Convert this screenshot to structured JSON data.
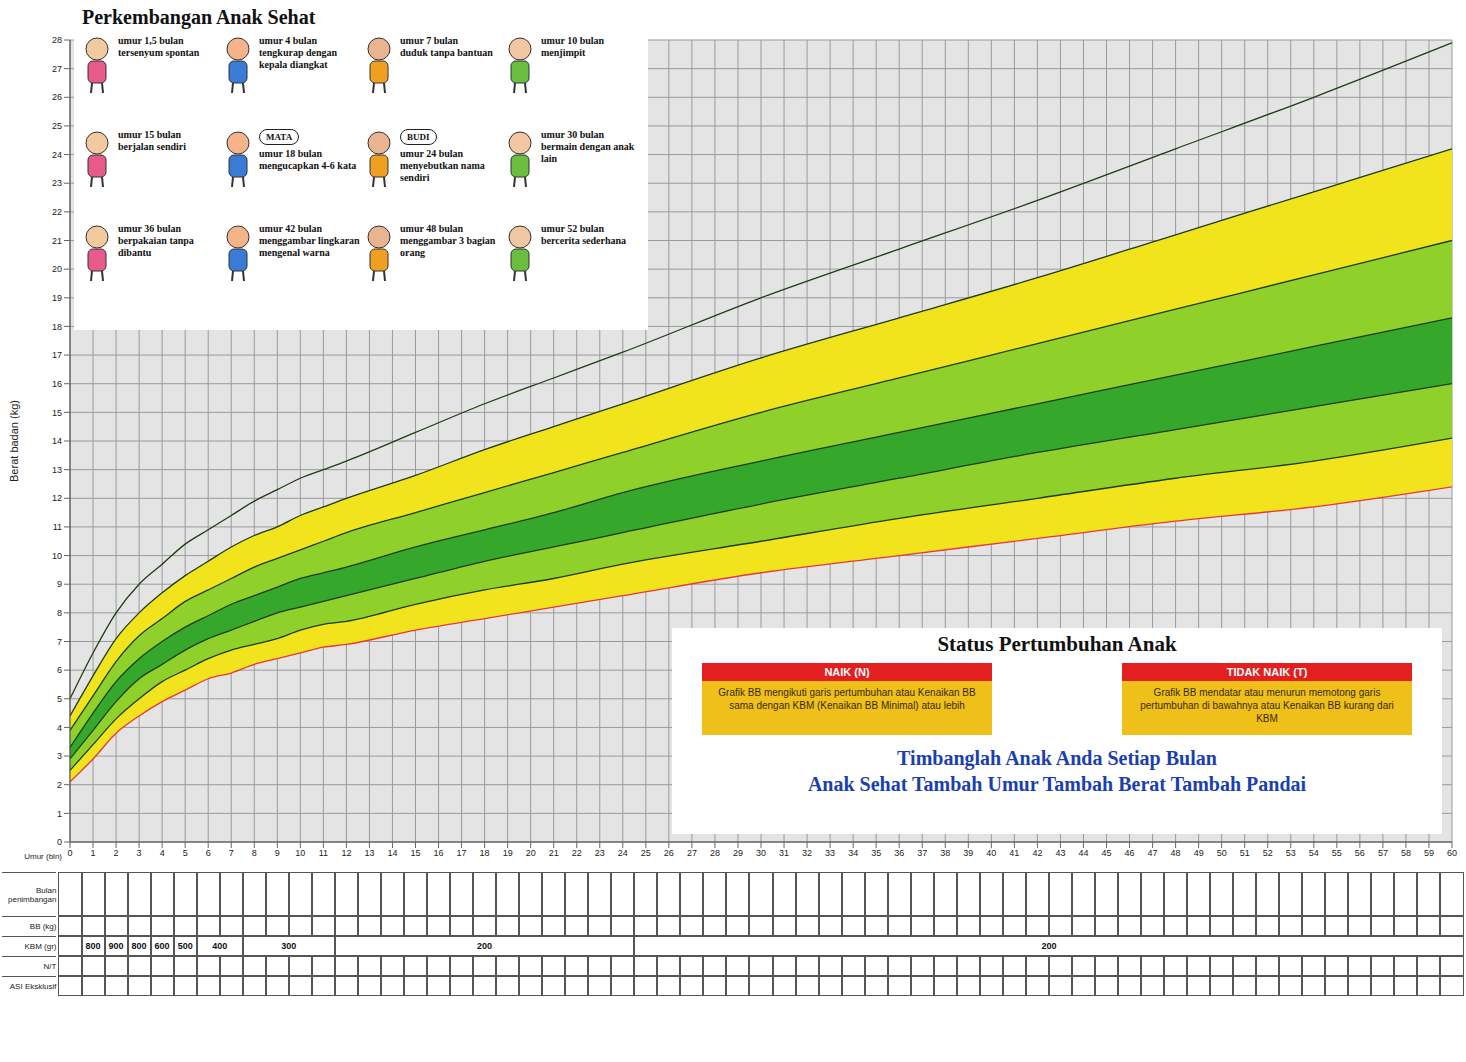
{
  "title": "Perkembangan Anak Sehat",
  "milestones": [
    {
      "age": "umur 1,5 bulan",
      "skill": "tersenyum spontan"
    },
    {
      "age": "umur 4 bulan",
      "skill": "tengkurap dengan kepala diangkat"
    },
    {
      "age": "umur 7 bulan",
      "skill": "duduk tanpa bantuan"
    },
    {
      "age": "umur 10 bulan",
      "skill": "menjimpit"
    },
    {
      "age": "umur 15 bulan",
      "skill": "berjalan sendiri"
    },
    {
      "age": "umur 18 bulan",
      "skill": "mengucapkan 4-6 kata",
      "bubble": "MATA"
    },
    {
      "age": "umur 24 bulan",
      "skill": "menyebutkan nama sendiri",
      "bubble": "BUDI"
    },
    {
      "age": "umur 30 bulan",
      "skill": "bermain dengan anak lain"
    },
    {
      "age": "umur 36 bulan",
      "skill": "berpakaian tanpa dibantu"
    },
    {
      "age": "umur 42 bulan",
      "skill": "menggambar lingkaran mengenal warna"
    },
    {
      "age": "umur 48 bulan",
      "skill": "menggambar 3 bagian orang"
    },
    {
      "age": "umur 52 bulan",
      "skill": "bercerita sederhana"
    }
  ],
  "chart_data": {
    "type": "area",
    "y_label": "Berat badan (kg)",
    "x_label": "Umur (bln)",
    "x": [
      0,
      1,
      2,
      3,
      4,
      5,
      6,
      7,
      8,
      9,
      10,
      11,
      12,
      15,
      18,
      21,
      24,
      30,
      36,
      42,
      48,
      54,
      60
    ],
    "series": [
      {
        "color": "#e8383a",
        "values": [
          2.1,
          2.9,
          3.8,
          4.4,
          4.9,
          5.3,
          5.7,
          5.9,
          6.2,
          6.4,
          6.6,
          6.8,
          6.9,
          7.4,
          7.8,
          8.2,
          8.6,
          9.4,
          10.0,
          10.6,
          11.2,
          11.7,
          12.4
        ]
      },
      {
        "color": "#1d3d12",
        "values": [
          2.5,
          3.4,
          4.3,
          5.0,
          5.6,
          6.0,
          6.4,
          6.7,
          6.9,
          7.1,
          7.4,
          7.6,
          7.7,
          8.3,
          8.8,
          9.2,
          9.7,
          10.5,
          11.3,
          12.0,
          12.7,
          13.3,
          14.1
        ]
      },
      {
        "color": "#1d3d12",
        "values": [
          2.9,
          3.9,
          4.9,
          5.7,
          6.2,
          6.7,
          7.1,
          7.4,
          7.7,
          8.0,
          8.2,
          8.4,
          8.6,
          9.2,
          9.8,
          10.3,
          10.8,
          11.8,
          12.7,
          13.6,
          14.4,
          15.2,
          16.0
        ]
      },
      {
        "color": "#1d3d12",
        "values": [
          3.3,
          4.5,
          5.6,
          6.4,
          7.0,
          7.5,
          7.9,
          8.3,
          8.6,
          8.9,
          9.2,
          9.4,
          9.6,
          10.3,
          10.9,
          11.5,
          12.2,
          13.3,
          14.3,
          15.3,
          16.3,
          17.3,
          18.3
        ]
      },
      {
        "color": "#1d3d12",
        "values": [
          3.9,
          5.1,
          6.3,
          7.2,
          7.8,
          8.4,
          8.8,
          9.2,
          9.6,
          9.9,
          10.2,
          10.5,
          10.8,
          11.5,
          12.2,
          12.9,
          13.6,
          15.0,
          16.2,
          17.4,
          18.6,
          19.8,
          21.0
        ]
      },
      {
        "color": "#1d3d12",
        "values": [
          4.4,
          5.8,
          7.1,
          8.0,
          8.7,
          9.3,
          9.8,
          10.3,
          10.7,
          11.0,
          11.4,
          11.7,
          12.0,
          12.8,
          13.7,
          14.5,
          15.3,
          16.9,
          18.3,
          19.7,
          21.2,
          22.7,
          24.2
        ]
      },
      {
        "color": "#1d3d12",
        "values": [
          5.0,
          6.6,
          8.0,
          9.0,
          9.7,
          10.4,
          10.9,
          11.4,
          11.9,
          12.3,
          12.7,
          13.0,
          13.3,
          14.3,
          15.3,
          16.2,
          17.1,
          19.0,
          20.7,
          22.4,
          24.2,
          26.0,
          27.9
        ]
      }
    ],
    "colors": [
      "#f2e41c",
      "#8fd12a",
      "#35a82c",
      "#8fd12a",
      "#f2e41c"
    ],
    "xlim": [
      0,
      60
    ],
    "xticks": [
      0,
      1,
      2,
      3,
      4,
      5,
      6,
      7,
      8,
      9,
      10,
      11,
      12,
      13,
      14,
      15,
      16,
      17,
      18,
      19,
      20,
      21,
      22,
      23,
      24,
      25,
      26,
      27,
      28,
      29,
      30,
      31,
      32,
      33,
      34,
      35,
      36,
      37,
      38,
      39,
      40,
      41,
      42,
      43,
      44,
      45,
      46,
      47,
      48,
      49,
      50,
      51,
      52,
      53,
      54,
      55,
      56,
      57,
      58,
      59,
      60
    ],
    "ylim": [
      0,
      28
    ],
    "yticks": [
      0,
      1,
      2,
      3,
      4,
      5,
      6,
      7,
      8,
      9,
      10,
      11,
      12,
      13,
      14,
      15,
      16,
      17,
      18,
      19,
      20,
      21,
      22,
      23,
      24,
      25,
      26,
      27,
      28
    ],
    "grid": true
  },
  "table": {
    "rows": [
      {
        "label": "Bulan penimbangan"
      },
      {
        "label": "BB (kg)"
      },
      {
        "label": "KBM (gr)",
        "spans": [
          {
            "from": 1,
            "to": 1,
            "value": 800
          },
          {
            "from": 2,
            "to": 2,
            "value": 900
          },
          {
            "from": 3,
            "to": 3,
            "value": 800
          },
          {
            "from": 4,
            "to": 4,
            "value": 600
          },
          {
            "from": 5,
            "to": 5,
            "value": 500
          },
          {
            "from": 6,
            "to": 7,
            "value": 400
          },
          {
            "from": 8,
            "to": 11,
            "value": 300
          },
          {
            "from": 12,
            "to": 24,
            "value": 200
          },
          {
            "from": 25,
            "to": 60,
            "value": 200
          }
        ]
      },
      {
        "label": "N/T"
      },
      {
        "label": "ASI Eksklusif"
      }
    ]
  },
  "status": {
    "title": "Status Pertumbuhan Anak",
    "boxes": [
      {
        "label": "NAIK (N)",
        "text": "Grafik BB mengikuti garis pertumbuhan atau Kenaikan BB sama dengan KBM (Kenaikan BB Minimal) atau lebih"
      },
      {
        "label": "TIDAK NAIK (T)",
        "text": "Grafik BB mendatar atau menurun memotong garis pertumbuhan di bawahnya atau Kenaikan BB kurang dari KBM"
      }
    ]
  },
  "slogans": [
    "Timbanglah Anak Anda Setiap Bulan",
    "Anak Sehat Tambah Umur Tambah Berat Tambah Pandai"
  ]
}
